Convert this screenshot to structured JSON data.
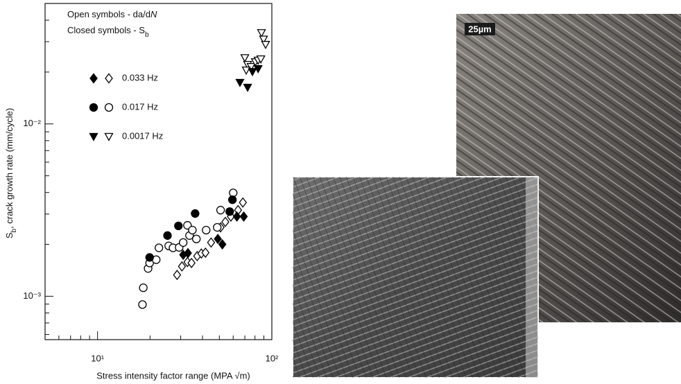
{
  "chart_data": {
    "type": "scatter",
    "annotations": [
      {
        "text": "Open symbols - da/d",
        "italic": "N"
      },
      {
        "text": "Closed symbols - S",
        "subscript": "b"
      }
    ],
    "x_label": "Stress intensity factor range (MPA √m)",
    "y_label": {
      "symbol": "S",
      "subscript": "b",
      "text": ", crack growth rate (mm/cycle)"
    },
    "log_x": true,
    "log_y": true,
    "xlim": [
      5,
      100
    ],
    "ylim": [
      0.00056,
      0.05
    ],
    "xticks": [
      {
        "value": 10,
        "label": "10¹"
      },
      {
        "value": 100,
        "label": "10²"
      }
    ],
    "yticks": [
      {
        "value": 0.001,
        "label": "10⁻³"
      },
      {
        "value": 0.01,
        "label": "10⁻²"
      }
    ],
    "xminor_ticks": [
      6,
      7,
      8,
      9,
      20,
      30,
      40,
      50,
      60,
      70,
      80,
      90
    ],
    "yminor_ticks": [
      0.0006,
      0.0007,
      0.0008,
      0.0009,
      0.002,
      0.003,
      0.004,
      0.005,
      0.006,
      0.007,
      0.008,
      0.009,
      0.02,
      0.03,
      0.04,
      0.05
    ],
    "series": [
      {
        "name": "0.033 Hz",
        "marker": "diamond",
        "closed": {
          "x": [
            31,
            33,
            49,
            52,
            63,
            69
          ],
          "values": [
            0.00174,
            0.00178,
            0.00215,
            0.002,
            0.0029,
            0.0029
          ]
        },
        "open": {
          "x": [
            28.6,
            30.5,
            32.8,
            34.6,
            37.3,
            39.4,
            41.6,
            44.8,
            50.8,
            54.1,
            58.2,
            64,
            68.2
          ],
          "values": [
            0.00133,
            0.00149,
            0.00158,
            0.00156,
            0.00171,
            0.00177,
            0.00179,
            0.00205,
            0.00251,
            0.0027,
            0.0029,
            0.00316,
            0.0035
          ]
        }
      },
      {
        "name": "0.017 Hz",
        "marker": "circle",
        "closed": {
          "x": [
            19.9,
            25.2,
            29.1,
            36.3,
            57.3,
            59.4
          ],
          "values": [
            0.00168,
            0.00225,
            0.00256,
            0.00302,
            0.0031,
            0.00363
          ]
        },
        "open": {
          "x": [
            18.1,
            18.3,
            19.5,
            19.9,
            21.7,
            22.5,
            25.6,
            27.1,
            29.4,
            31,
            32.8,
            33.7,
            35,
            36.9,
            42,
            48.6,
            50.8,
            60
          ],
          "values": [
            0.000895,
            0.00112,
            0.00145,
            0.00156,
            0.00163,
            0.00191,
            0.00196,
            0.00191,
            0.00192,
            0.00205,
            0.00258,
            0.00225,
            0.00242,
            0.00215,
            0.00242,
            0.00251,
            0.00316,
            0.00398
          ]
        }
      },
      {
        "name": "0.0017 Hz",
        "marker": "triangle-down",
        "closed": {
          "x": [
            65.6,
            72.6,
            77.4,
            83.4
          ],
          "values": [
            0.0174,
            0.0163,
            0.0201,
            0.0209
          ]
        },
        "open": {
          "x": [
            70,
            72.6,
            76,
            80.4,
            83.4,
            86.5,
            71.3,
            87.2,
            89.6,
            92.1
          ],
          "values": [
            0.0242,
            0.0221,
            0.0215,
            0.0229,
            0.0234,
            0.0238,
            0.0205,
            0.0338,
            0.031,
            0.0289
          ]
        }
      }
    ]
  },
  "micrograph": {
    "scale_bar": "25µm"
  }
}
